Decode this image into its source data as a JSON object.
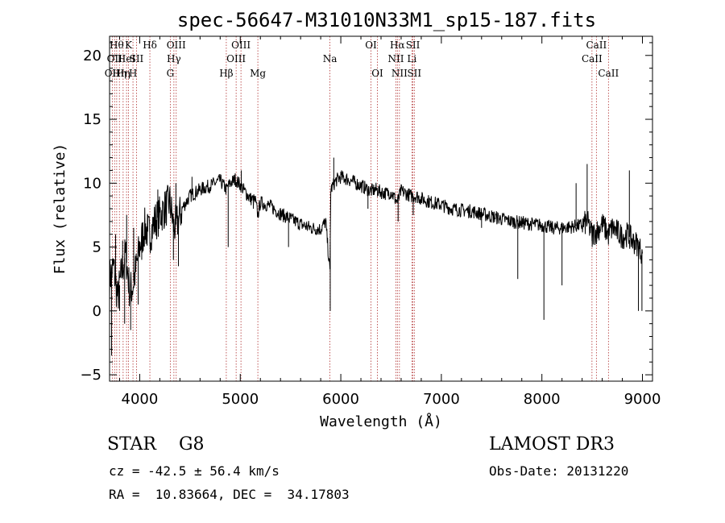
{
  "chart_data": {
    "type": "line",
    "title": "spec-56647-M31010N33M1_sp15-187.fits",
    "xlabel": "Wavelength (Å)",
    "ylabel": "Flux (relative)",
    "xlim": [
      3700,
      9100
    ],
    "ylim": [
      -5.5,
      21.5
    ],
    "xticks": [
      4000,
      5000,
      6000,
      7000,
      8000,
      9000
    ],
    "yticks": [
      -5,
      0,
      5,
      10,
      15,
      20
    ],
    "xtick_labels": [
      "4000",
      "5000",
      "6000",
      "7000",
      "8000",
      "9000"
    ],
    "ytick_labels": [
      "−5",
      "0",
      "5",
      "10",
      "15",
      "20"
    ],
    "line_color": "#000000",
    "marker_color": "#b03030",
    "spectrum": {
      "name": "flux",
      "x": [
        3700,
        3740,
        3780,
        3820,
        3860,
        3900,
        3933,
        3968,
        4000,
        4050,
        4101,
        4150,
        4200,
        4250,
        4300,
        4340,
        4380,
        4420,
        4500,
        4600,
        4700,
        4800,
        4861,
        4900,
        4950,
        5007,
        5050,
        5100,
        5150,
        5175,
        5200,
        5300,
        5400,
        5500,
        5600,
        5700,
        5800,
        5850,
        5892,
        5900,
        5950,
        6000,
        6100,
        6200,
        6250,
        6300,
        6350,
        6400,
        6450,
        6500,
        6563,
        6600,
        6650,
        6700,
        6750,
        6800,
        6900,
        7000,
        7100,
        7200,
        7300,
        7400,
        7500,
        7600,
        7700,
        7800,
        7900,
        8000,
        8050,
        8100,
        8200,
        8300,
        8400,
        8450,
        8498,
        8542,
        8600,
        8662,
        8700,
        8750,
        8800,
        8850,
        8900,
        8950,
        9000
      ],
      "y": [
        2.5,
        3.5,
        1.0,
        3.0,
        4.5,
        1.5,
        2.0,
        3.5,
        5.0,
        6.5,
        6.0,
        7.0,
        7.5,
        8.0,
        8.5,
        6.5,
        7.0,
        8.0,
        9.0,
        9.5,
        9.8,
        10.2,
        9.5,
        10.0,
        10.3,
        9.8,
        9.3,
        8.8,
        8.6,
        7.5,
        8.5,
        8.2,
        7.6,
        7.2,
        6.8,
        6.5,
        6.4,
        7.0,
        3.0,
        9.5,
        10.2,
        10.5,
        10.2,
        9.8,
        9.6,
        9.4,
        9.5,
        9.3,
        9.2,
        9.3,
        8.5,
        9.4,
        9.2,
        9.0,
        9.0,
        8.8,
        8.5,
        8.3,
        8.0,
        7.9,
        7.8,
        7.6,
        7.4,
        7.2,
        7.0,
        6.9,
        6.8,
        6.7,
        6.6,
        6.5,
        6.5,
        6.6,
        6.7,
        7.0,
        6.0,
        6.2,
        6.8,
        6.0,
        6.5,
        6.2,
        5.8,
        6.0,
        5.5,
        5.2,
        4.5
      ]
    },
    "spikes": [
      {
        "x": 3720,
        "y": -3.5
      },
      {
        "x": 3760,
        "y": 6.0
      },
      {
        "x": 3800,
        "y": 0.0
      },
      {
        "x": 3830,
        "y": 5.5
      },
      {
        "x": 3850,
        "y": -1.0
      },
      {
        "x": 3870,
        "y": 7.5
      },
      {
        "x": 3910,
        "y": -1.5
      },
      {
        "x": 3940,
        "y": 6.5
      },
      {
        "x": 3985,
        "y": 0.5
      },
      {
        "x": 4020,
        "y": 4.0
      },
      {
        "x": 4080,
        "y": 7.5
      },
      {
        "x": 4180,
        "y": 9.5
      },
      {
        "x": 4335,
        "y": 4.0
      },
      {
        "x": 4360,
        "y": 10.0
      },
      {
        "x": 4385,
        "y": 3.5
      },
      {
        "x": 4520,
        "y": 10.5
      },
      {
        "x": 4880,
        "y": 5.0
      },
      {
        "x": 5010,
        "y": 11.0
      },
      {
        "x": 5130,
        "y": 8.0
      },
      {
        "x": 5480,
        "y": 5.0
      },
      {
        "x": 5895,
        "y": 0.0
      },
      {
        "x": 5930,
        "y": 12.0
      },
      {
        "x": 6270,
        "y": 8.0
      },
      {
        "x": 6570,
        "y": 7.0
      },
      {
        "x": 6720,
        "y": 7.5
      },
      {
        "x": 7400,
        "y": 6.5
      },
      {
        "x": 7760,
        "y": 2.5
      },
      {
        "x": 8020,
        "y": -0.7
      },
      {
        "x": 8200,
        "y": 2.0
      },
      {
        "x": 8340,
        "y": 10.0
      },
      {
        "x": 8450,
        "y": 11.5
      },
      {
        "x": 8500,
        "y": 5.0
      },
      {
        "x": 8870,
        "y": 11.0
      },
      {
        "x": 8960,
        "y": 0.0
      },
      {
        "x": 8995,
        "y": 0.0
      }
    ],
    "lines": [
      {
        "wave": 3727,
        "label": "OII",
        "row": 2
      },
      {
        "wave": 3750,
        "label": "OII",
        "row": 1
      },
      {
        "wave": 3771,
        "label": "Hθ",
        "row": 0
      },
      {
        "wave": 3798,
        "label": "Hη",
        "row": 2
      },
      {
        "wave": 3835,
        "label": "Hη",
        "row": 2
      },
      {
        "wave": 3869,
        "label": "HeI",
        "row": 1
      },
      {
        "wave": 3889,
        "label": "K",
        "row": 0
      },
      {
        "wave": 3933,
        "label": "H",
        "row": 2
      },
      {
        "wave": 3968,
        "label": "SII",
        "row": 1
      },
      {
        "wave": 4101,
        "label": "Hδ",
        "row": 0
      },
      {
        "wave": 4304,
        "label": "G",
        "row": 2
      },
      {
        "wave": 4340,
        "label": "Hγ",
        "row": 1
      },
      {
        "wave": 4363,
        "label": "OIII",
        "row": 0
      },
      {
        "wave": 4861,
        "label": "Hβ",
        "row": 2
      },
      {
        "wave": 4959,
        "label": "OIII",
        "row": 1
      },
      {
        "wave": 5007,
        "label": "OIII",
        "row": 0
      },
      {
        "wave": 5175,
        "label": "Mg",
        "row": 2
      },
      {
        "wave": 5892,
        "label": "Na",
        "row": 1
      },
      {
        "wave": 6300,
        "label": "OI",
        "row": 0
      },
      {
        "wave": 6364,
        "label": "OI",
        "row": 2
      },
      {
        "wave": 6548,
        "label": "NII",
        "row": 1
      },
      {
        "wave": 6563,
        "label": "Hα",
        "row": 0
      },
      {
        "wave": 6583,
        "label": "NII",
        "row": 2
      },
      {
        "wave": 6707,
        "label": "Li",
        "row": 1
      },
      {
        "wave": 6717,
        "label": "SII",
        "row": 0
      },
      {
        "wave": 6731,
        "label": "SII",
        "row": 2
      },
      {
        "wave": 8498,
        "label": "CaII",
        "row": 1
      },
      {
        "wave": 8542,
        "label": "CaII",
        "row": 0
      },
      {
        "wave": 8662,
        "label": "CaII",
        "row": 2
      }
    ]
  },
  "info": {
    "class_line": "STAR    G8",
    "survey": "LAMOST DR3",
    "redshift": "cz = -42.5 ± 56.4 km/s",
    "obs_date": "Obs-Date: 20131220",
    "coords": "RA =  10.83664, DEC =  34.17803"
  }
}
